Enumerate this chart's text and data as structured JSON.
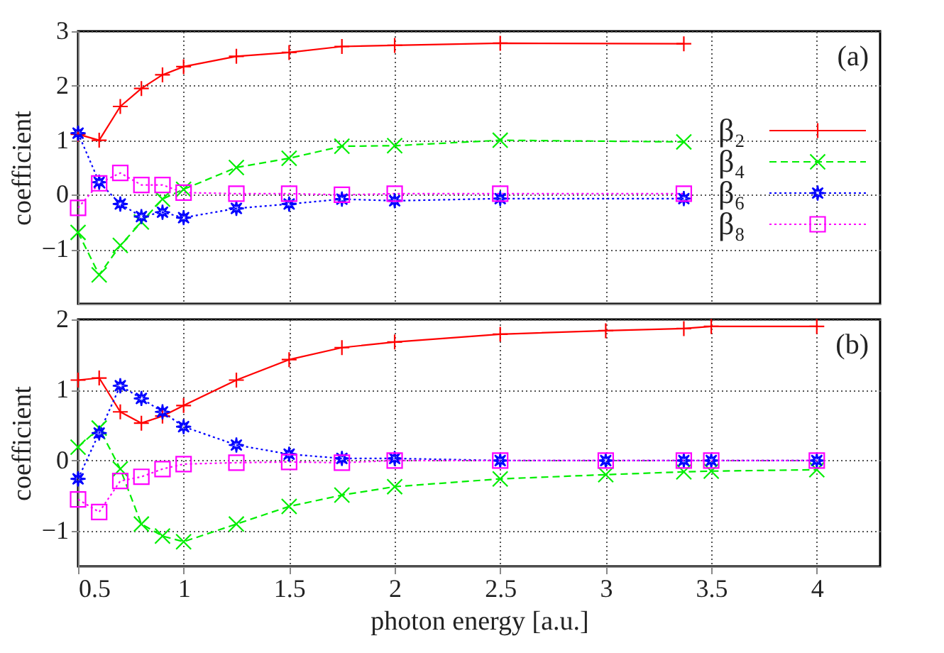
{
  "chart_data": [
    {
      "type": "line",
      "ylabel": "coefficient",
      "xlim": [
        0.5,
        4.3
      ],
      "xticks": [
        0.5,
        1,
        1.5,
        2,
        2.5,
        3,
        3.5,
        4
      ],
      "ylim": [
        -2,
        3
      ],
      "yticks": [
        -1,
        0,
        1,
        2,
        3
      ],
      "grid": true,
      "legend": "right",
      "tick_labels": "y",
      "annotations": [
        "(a)"
      ],
      "x": [
        0.5,
        0.6,
        0.7,
        0.8,
        0.9,
        1.0,
        1.25,
        1.5,
        1.75,
        2.0,
        2.5,
        3.37
      ],
      "series": [
        {
          "name": "β₂",
          "color": "#ff0000",
          "marker": "cross",
          "line_style": "solid",
          "values": [
            1.11,
            1.0,
            1.62,
            1.95,
            2.2,
            2.35,
            2.54,
            2.61,
            2.72,
            2.74,
            2.78,
            2.77
          ]
        },
        {
          "name": "β₄",
          "color": "#00ee00",
          "marker": "x",
          "line_style": "dashed",
          "values": [
            -0.69,
            -1.47,
            -0.93,
            -0.5,
            -0.08,
            0.1,
            0.5,
            0.67,
            0.89,
            0.9,
            1.0,
            0.97
          ]
        },
        {
          "name": "β₆",
          "color": "#0000ff",
          "marker": "star",
          "line_style": "dotted",
          "values": [
            1.13,
            0.23,
            -0.17,
            -0.4,
            -0.32,
            -0.42,
            -0.25,
            -0.17,
            -0.08,
            -0.11,
            -0.07,
            -0.07
          ]
        },
        {
          "name": "β₈",
          "color": "#ff00ff",
          "marker": "square",
          "line_style": "dotted",
          "values": [
            -0.24,
            0.21,
            0.4,
            0.18,
            0.18,
            0.04,
            0.02,
            0.02,
            0.0,
            0.02,
            0.02,
            0.02
          ]
        }
      ]
    },
    {
      "type": "line",
      "ylabel": "coefficient",
      "xlabel": "photon energy [a.u.]",
      "xlim": [
        0.5,
        4.3
      ],
      "xticks": [
        0.5,
        1,
        1.5,
        2,
        2.5,
        3,
        3.5,
        4
      ],
      "ylim": [
        -1.5,
        2
      ],
      "yticks": [
        -1,
        0,
        1,
        2
      ],
      "grid": true,
      "legend": false,
      "annotations": [
        "(b)"
      ],
      "x": [
        0.5,
        0.6,
        0.7,
        0.8,
        0.9,
        1.0,
        1.25,
        1.5,
        1.75,
        2.0,
        2.5,
        3.0,
        3.37,
        3.5,
        4.0
      ],
      "series": [
        {
          "color": "#ff0000",
          "marker": "cross",
          "line_style": "solid",
          "values": [
            1.14,
            1.17,
            0.69,
            0.53,
            0.63,
            0.78,
            1.14,
            1.43,
            1.6,
            1.68,
            1.79,
            1.84,
            1.87,
            1.9,
            1.9
          ]
        },
        {
          "color": "#00ee00",
          "marker": "x",
          "line_style": "dashed",
          "values": [
            0.19,
            0.46,
            -0.12,
            -0.9,
            -1.07,
            -1.15,
            -0.9,
            -0.65,
            -0.49,
            -0.37,
            -0.26,
            -0.2,
            -0.16,
            -0.15,
            -0.13
          ]
        },
        {
          "color": "#0000ff",
          "marker": "star",
          "line_style": "dotted",
          "values": [
            -0.26,
            0.39,
            1.06,
            0.88,
            0.69,
            0.48,
            0.22,
            0.09,
            0.03,
            0.03,
            0.0,
            0.0,
            0.0,
            0.0,
            0.0
          ]
        },
        {
          "color": "#ff00ff",
          "marker": "square",
          "line_style": "dotted",
          "values": [
            -0.55,
            -0.73,
            -0.29,
            -0.23,
            -0.12,
            -0.05,
            -0.03,
            -0.02,
            -0.03,
            0.0,
            0.0,
            0.0,
            0.0,
            0.0,
            0.0
          ]
        }
      ]
    }
  ]
}
